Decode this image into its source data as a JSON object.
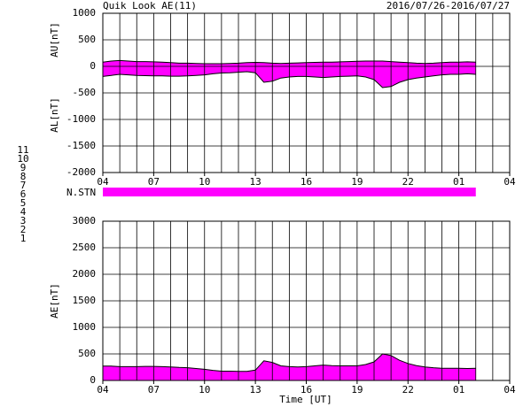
{
  "title": "Quik Look AE(11)",
  "date_range": "2016/07/26-2016/07/27",
  "x_label": "Time [UT]",
  "station_axis_label": "N.STN",
  "stations": [
    {
      "label": "11",
      "color": "#00e0e0"
    },
    {
      "label": "10",
      "color": "#ff00ff"
    },
    {
      "label": "9",
      "color": "#0000ff"
    },
    {
      "label": "8",
      "color": "#f0e060"
    },
    {
      "label": "7",
      "color": "#c0f080"
    },
    {
      "label": "6",
      "color": "#ff0000"
    },
    {
      "label": "5",
      "color": "#c8c8c8"
    },
    {
      "label": "4",
      "color": "#a0a0a0"
    },
    {
      "label": "3",
      "color": "#009090"
    },
    {
      "label": "2",
      "color": "#9000c0"
    },
    {
      "label": "1",
      "color": "#0000ff"
    }
  ],
  "chart_data": [
    {
      "type": "area",
      "y_labels": [
        "AU[nT]",
        "AL[nT]"
      ],
      "grid": true,
      "x": [
        4,
        4.5,
        5,
        5.5,
        6,
        6.5,
        7,
        7.5,
        8,
        8.5,
        9,
        9.5,
        10,
        10.5,
        11,
        11.5,
        12,
        12.5,
        13,
        13.5,
        14,
        14.5,
        15,
        15.5,
        16,
        16.5,
        17,
        17.5,
        18,
        18.5,
        19,
        19.5,
        20,
        20.5,
        21,
        21.5,
        22,
        22.5,
        23,
        23.5,
        24,
        24.5,
        25,
        25.5,
        26
      ],
      "series": [
        {
          "name": "AU",
          "color": "#ff00ff",
          "values": [
            80,
            100,
            110,
            100,
            90,
            90,
            85,
            80,
            70,
            60,
            60,
            55,
            50,
            50,
            50,
            55,
            60,
            70,
            75,
            70,
            60,
            55,
            60,
            65,
            70,
            75,
            80,
            80,
            85,
            90,
            95,
            100,
            100,
            100,
            90,
            80,
            70,
            60,
            55,
            60,
            70,
            80,
            80,
            85,
            80
          ]
        },
        {
          "name": "AL",
          "color": "#ff00ff",
          "values": [
            -190,
            -170,
            -150,
            -160,
            -170,
            -175,
            -180,
            -180,
            -185,
            -185,
            -180,
            -170,
            -160,
            -140,
            -125,
            -120,
            -110,
            -100,
            -120,
            -300,
            -280,
            -220,
            -200,
            -190,
            -190,
            -200,
            -210,
            -200,
            -190,
            -185,
            -180,
            -200,
            -250,
            -400,
            -380,
            -300,
            -250,
            -220,
            -200,
            -180,
            -160,
            -150,
            -150,
            -140,
            -150
          ]
        }
      ],
      "xlim": [
        4,
        28
      ],
      "xticks": [
        {
          "value": 4,
          "label": "04"
        },
        {
          "value": 7,
          "label": "07"
        },
        10,
        13,
        16,
        19,
        22,
        {
          "value": 25,
          "label": "01"
        },
        {
          "value": 28,
          "label": "04"
        }
      ],
      "ylim": [
        -2000,
        1000
      ],
      "yticks": [
        1000,
        500,
        0,
        -500,
        -1000,
        -1500,
        -2000
      ]
    },
    {
      "type": "area",
      "y_label": "AE[nT]",
      "grid": true,
      "x": [
        4,
        4.5,
        5,
        5.5,
        6,
        6.5,
        7,
        7.5,
        8,
        8.5,
        9,
        9.5,
        10,
        10.5,
        11,
        11.5,
        12,
        12.5,
        13,
        13.5,
        14,
        14.5,
        15,
        15.5,
        16,
        16.5,
        17,
        17.5,
        18,
        18.5,
        19,
        19.5,
        20,
        20.5,
        21,
        21.5,
        22,
        22.5,
        23,
        23.5,
        24,
        24.5,
        25,
        25.5,
        26
      ],
      "series": [
        {
          "name": "AE",
          "color": "#ff00ff",
          "values": [
            270,
            270,
            260,
            260,
            260,
            265,
            265,
            260,
            255,
            245,
            240,
            225,
            210,
            190,
            175,
            175,
            170,
            170,
            195,
            370,
            340,
            275,
            260,
            255,
            260,
            275,
            290,
            280,
            275,
            275,
            275,
            300,
            350,
            500,
            470,
            380,
            320,
            280,
            255,
            240,
            230,
            230,
            230,
            225,
            230
          ]
        }
      ],
      "xlim": [
        4,
        28
      ],
      "xticks": [
        {
          "value": 4,
          "label": "04"
        },
        {
          "value": 7,
          "label": "07"
        },
        10,
        13,
        16,
        19,
        22,
        {
          "value": 25,
          "label": "01"
        },
        {
          "value": 28,
          "label": "04"
        }
      ],
      "ylim": [
        0,
        3000
      ],
      "yticks": [
        3000,
        2500,
        2000,
        1500,
        1000,
        500,
        0
      ]
    }
  ]
}
